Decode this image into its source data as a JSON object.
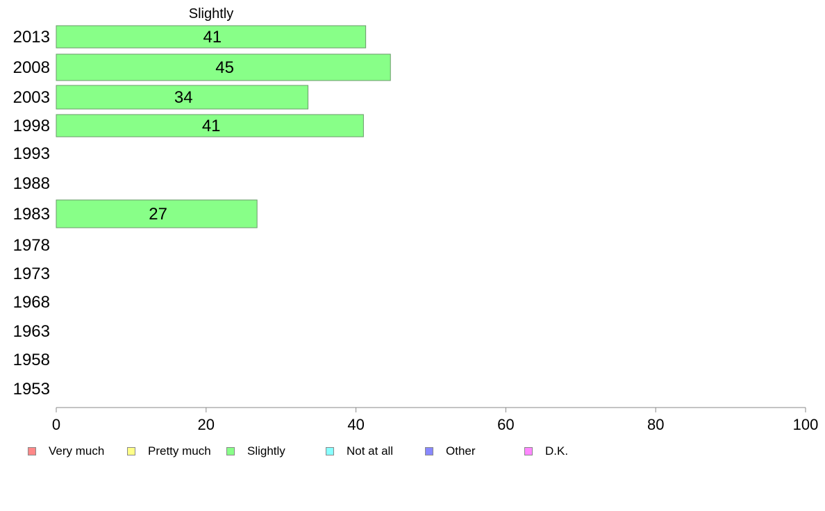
{
  "chart_data": {
    "type": "bar",
    "orientation": "horizontal",
    "title": "Slightly",
    "categories": [
      "2013",
      "2008",
      "2003",
      "1998",
      "1993",
      "1988",
      "1983",
      "1978",
      "1973",
      "1968",
      "1963",
      "1958",
      "1953"
    ],
    "values": [
      41.3,
      44.6,
      33.6,
      41.0,
      null,
      null,
      26.8,
      null,
      null,
      null,
      null,
      null,
      null
    ],
    "data_labels": [
      "41",
      "45",
      "34",
      "41",
      "",
      "",
      "27",
      "",
      "",
      "",
      "",
      "",
      ""
    ],
    "xlim": [
      0,
      100
    ],
    "xticks": [
      "0",
      "20",
      "40",
      "60",
      "80",
      "100"
    ],
    "xlabel": "",
    "ylabel": "",
    "grid": false,
    "bar_color": "#88ff88",
    "legend_position": "bottom",
    "legend": [
      {
        "label": "Very much",
        "color": "#ff8888"
      },
      {
        "label": "Pretty much",
        "color": "#ffff88"
      },
      {
        "label": "Slightly",
        "color": "#88ff88"
      },
      {
        "label": "Not at all",
        "color": "#88ffff"
      },
      {
        "label": "Other",
        "color": "#8888ff"
      },
      {
        "label": "D.K.",
        "color": "#ff88ff"
      }
    ]
  }
}
